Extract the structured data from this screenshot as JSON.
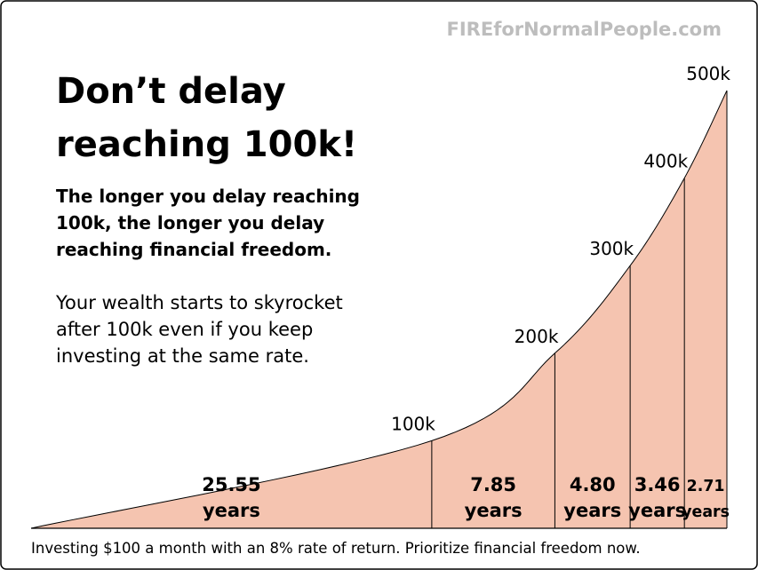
{
  "chart_data": {
    "type": "area",
    "watermark": "FIREforNormalPeople.com",
    "title": [
      "Don’t delay",
      "reaching 100k!"
    ],
    "subtitle": [
      "The longer you delay reaching",
      "100k, the longer you delay",
      "reaching financial freedom."
    ],
    "description": [
      "Your wealth starts to skyrocket",
      "after 100k even if you keep",
      "investing at the same rate."
    ],
    "milestones": [
      {
        "value": 100000,
        "label": "100k"
      },
      {
        "value": 200000,
        "label": "200k"
      },
      {
        "value": 300000,
        "label": "300k"
      },
      {
        "value": 400000,
        "label": "400k"
      },
      {
        "value": 500000,
        "label": "500k"
      }
    ],
    "durations": [
      25.55,
      7.85,
      4.8,
      3.46,
      2.71
    ],
    "value_labels": [
      "25.55",
      "7.85",
      "4.80",
      "3.46",
      "2.71"
    ],
    "duration_unit": "years",
    "color": "#f5c4b0",
    "footnote": "Investing $100 a month with an 8% rate of return. Prioritize financial freedom now."
  }
}
